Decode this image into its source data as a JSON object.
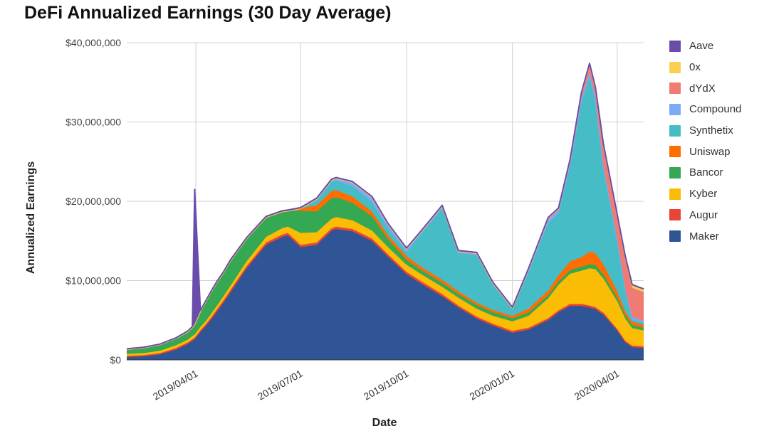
{
  "chart_data": {
    "type": "area",
    "stacked": true,
    "title": "DeFi Annualized Earnings (30 Day Average)",
    "xlabel": "Date",
    "ylabel": "Annualized Earnings",
    "ylim": [
      0,
      40000000
    ],
    "yticks": [
      0,
      10000000,
      20000000,
      30000000,
      40000000
    ],
    "ytick_labels": [
      "$0",
      "$10,000,000",
      "$20,000,000",
      "$30,000,000",
      "$40,000,000"
    ],
    "xlim": [
      "2019-01-31",
      "2020-04-24"
    ],
    "xticks": [
      "2019-04-01",
      "2019-07-01",
      "2019-10-01",
      "2020-01-01",
      "2020-04-01"
    ],
    "xtick_labels": [
      "2019/04/01",
      "2019/07/01",
      "2019/10/01",
      "2020/01/01",
      "2020/04/01"
    ],
    "grid": true,
    "legend_position": "right",
    "legend_order": [
      "Aave",
      "0x",
      "dYdX",
      "Compound",
      "Synthetix",
      "Uniswap",
      "Bancor",
      "Kyber",
      "Augur",
      "Maker"
    ],
    "x": [
      "2019-01-31",
      "2019-02-15",
      "2019-03-01",
      "2019-03-15",
      "2019-03-25",
      "2019-03-29",
      "2019-03-31",
      "2019-04-05",
      "2019-04-10",
      "2019-04-15",
      "2019-04-20",
      "2019-04-25",
      "2019-05-01",
      "2019-05-15",
      "2019-06-01",
      "2019-06-15",
      "2019-06-20",
      "2019-07-01",
      "2019-07-15",
      "2019-07-28",
      "2019-08-01",
      "2019-08-15",
      "2019-09-01",
      "2019-09-15",
      "2019-10-01",
      "2019-10-15",
      "2019-11-01",
      "2019-11-15",
      "2019-12-01",
      "2019-12-15",
      "2020-01-01",
      "2020-01-15",
      "2020-02-01",
      "2020-02-10",
      "2020-02-20",
      "2020-03-01",
      "2020-03-08",
      "2020-03-13",
      "2020-03-20",
      "2020-04-01",
      "2020-04-08",
      "2020-04-14",
      "2020-04-24"
    ],
    "series": [
      {
        "name": "Maker",
        "color": "#2f5597",
        "values": [
          0.35,
          0.45,
          0.7,
          1.3,
          2.0,
          2.4,
          2.6,
          3.5,
          4.3,
          5.2,
          6.2,
          7.2,
          8.5,
          11.5,
          14.5,
          15.5,
          15.7,
          14.2,
          14.5,
          16.3,
          16.5,
          16.2,
          15.0,
          13.0,
          10.8,
          9.5,
          8.0,
          6.6,
          5.2,
          4.3,
          3.4,
          3.8,
          5.0,
          6.0,
          6.8,
          6.8,
          6.6,
          6.4,
          5.7,
          3.7,
          2.2,
          1.6,
          1.5
        ]
      },
      {
        "name": "Augur",
        "color": "#e94435",
        "values": [
          0.15,
          0.15,
          0.15,
          0.2,
          0.2,
          0.2,
          0.2,
          0.25,
          0.25,
          0.3,
          0.3,
          0.3,
          0.3,
          0.3,
          0.3,
          0.3,
          0.3,
          0.3,
          0.3,
          0.3,
          0.3,
          0.3,
          0.3,
          0.3,
          0.3,
          0.3,
          0.3,
          0.25,
          0.25,
          0.25,
          0.25,
          0.25,
          0.25,
          0.25,
          0.25,
          0.25,
          0.25,
          0.25,
          0.25,
          0.2,
          0.2,
          0.2,
          0.2
        ]
      },
      {
        "name": "Kyber",
        "color": "#fbbc05",
        "values": [
          0.25,
          0.25,
          0.3,
          0.35,
          0.35,
          0.4,
          0.4,
          0.4,
          0.4,
          0.45,
          0.45,
          0.5,
          0.5,
          0.6,
          0.7,
          0.8,
          0.8,
          1.5,
          1.3,
          1.2,
          1.2,
          1.1,
          1.0,
          0.9,
          0.9,
          0.9,
          0.9,
          1.0,
          1.0,
          1.0,
          1.2,
          1.5,
          2.5,
          3.2,
          3.8,
          4.2,
          4.7,
          4.8,
          4.3,
          3.5,
          2.8,
          2.2,
          2.0
        ]
      },
      {
        "name": "Bancor",
        "color": "#34a853",
        "values": [
          0.6,
          0.7,
          0.8,
          0.9,
          1.0,
          1.1,
          1.3,
          2.0,
          2.5,
          2.8,
          3.0,
          3.0,
          3.2,
          2.9,
          2.5,
          2.1,
          2.0,
          2.8,
          2.6,
          2.6,
          2.5,
          2.2,
          1.8,
          1.0,
          0.6,
          0.5,
          0.5,
          0.45,
          0.45,
          0.45,
          0.4,
          0.4,
          0.4,
          0.4,
          0.45,
          0.5,
          0.5,
          0.5,
          0.5,
          0.45,
          0.4,
          0.4,
          0.35
        ]
      },
      {
        "name": "Uniswap",
        "color": "#ff6d01",
        "values": [
          0,
          0,
          0,
          0,
          0,
          0,
          0,
          0,
          0,
          0,
          0,
          0,
          0,
          0,
          0,
          0,
          0,
          0.3,
          0.8,
          0.9,
          0.9,
          0.8,
          0.6,
          0.5,
          0.5,
          0.4,
          0.4,
          0.35,
          0.3,
          0.3,
          0.3,
          0.5,
          0.6,
          0.8,
          1.1,
          1.2,
          1.6,
          1.5,
          1.3,
          0.8,
          0.5,
          0.4,
          0.4
        ]
      },
      {
        "name": "Synthetix",
        "color": "#46bdc6",
        "values": [
          0,
          0,
          0,
          0,
          0,
          0,
          0,
          0,
          0,
          0,
          0,
          0,
          0,
          0,
          0,
          0,
          0,
          0,
          0.6,
          1.1,
          1.2,
          1.3,
          1.2,
          0.9,
          0.5,
          4.5,
          9.0,
          4.8,
          6.0,
          3.2,
          0.8,
          4.6,
          8.5,
          7.8,
          12.0,
          19.5,
          22.0,
          19.2,
          12.0,
          6.3,
          2.5,
          0.3,
          0.2
        ]
      },
      {
        "name": "Compound",
        "color": "#7baaf7",
        "values": [
          0,
          0,
          0,
          0,
          0,
          0,
          0,
          0,
          0,
          0,
          0,
          0,
          0,
          0,
          0,
          0,
          0,
          0,
          0.2,
          0.3,
          0.3,
          0.5,
          0.6,
          0.5,
          0.4,
          0.3,
          0.3,
          0.25,
          0.25,
          0.2,
          0.2,
          0.3,
          0.4,
          0.4,
          0.4,
          0.5,
          0.5,
          0.5,
          0.4,
          0.3,
          0.3,
          0.3,
          0.3
        ]
      },
      {
        "name": "dYdX",
        "color": "#f07b72",
        "values": [
          0,
          0,
          0,
          0,
          0,
          0,
          0,
          0,
          0,
          0,
          0,
          0,
          0,
          0,
          0,
          0,
          0,
          0,
          0,
          0,
          0,
          0,
          0,
          0,
          0,
          0,
          0,
          0,
          0,
          0,
          0,
          0.1,
          0.2,
          0.2,
          0.3,
          0.6,
          1.0,
          1.1,
          2.5,
          2.7,
          3.8,
          3.7,
          3.6
        ]
      },
      {
        "name": "0x",
        "color": "#fcd04f",
        "values": [
          0,
          0,
          0,
          0,
          0,
          0,
          0,
          0,
          0,
          0,
          0,
          0,
          0,
          0,
          0,
          0,
          0,
          0,
          0,
          0,
          0,
          0,
          0,
          0,
          0,
          0,
          0,
          0,
          0,
          0,
          0,
          0,
          0,
          0,
          0.05,
          0.1,
          0.15,
          0.1,
          0.2,
          0.3,
          0.3,
          0.3,
          0.3
        ]
      },
      {
        "name": "Aave",
        "color": "#6a4cab",
        "values": [
          0.05,
          0.05,
          0.05,
          0.05,
          0.1,
          0.1,
          17.0,
          0.1,
          0.1,
          0.1,
          0.1,
          0.1,
          0.1,
          0.1,
          0.1,
          0.1,
          0.1,
          0.1,
          0.1,
          0.1,
          0.1,
          0.1,
          0.1,
          0.1,
          0.1,
          0.1,
          0.1,
          0.1,
          0.1,
          0.1,
          0.1,
          0.1,
          0.1,
          0.1,
          0.1,
          0.1,
          0.1,
          0.1,
          0.1,
          0.1,
          0.1,
          0.1,
          0.1
        ]
      }
    ]
  }
}
